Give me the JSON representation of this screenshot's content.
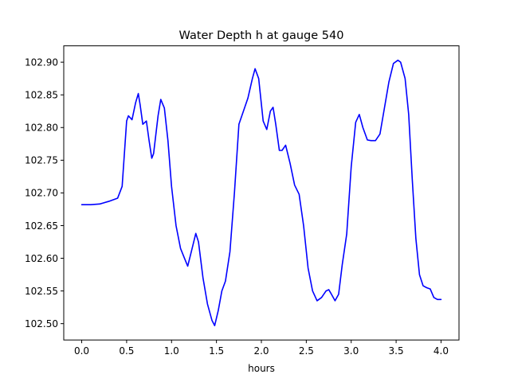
{
  "chart_data": {
    "type": "line",
    "title": "Water Depth h at gauge 540",
    "xlabel": "hours",
    "ylabel": "",
    "xlim": [
      -0.2,
      4.2
    ],
    "ylim": [
      102.475,
      102.925
    ],
    "xticks": [
      0.0,
      0.5,
      1.0,
      1.5,
      2.0,
      2.5,
      3.0,
      3.5,
      4.0
    ],
    "xtick_labels": [
      "0.0",
      "0.5",
      "1.0",
      "1.5",
      "2.0",
      "2.5",
      "3.0",
      "3.5",
      "4.0"
    ],
    "yticks": [
      102.5,
      102.55,
      102.6,
      102.65,
      102.7,
      102.75,
      102.8,
      102.85,
      102.9
    ],
    "ytick_labels": [
      "102.50",
      "102.55",
      "102.60",
      "102.65",
      "102.70",
      "102.75",
      "102.80",
      "102.85",
      "102.90"
    ],
    "grid": false,
    "legend": "none",
    "series": [
      {
        "color": "#0000ff",
        "x": [
          0.0,
          0.1,
          0.2,
          0.3,
          0.4,
          0.45,
          0.48,
          0.5,
          0.52,
          0.56,
          0.6,
          0.63,
          0.65,
          0.68,
          0.72,
          0.75,
          0.78,
          0.8,
          0.85,
          0.88,
          0.92,
          0.96,
          1.0,
          1.05,
          1.1,
          1.15,
          1.18,
          1.22,
          1.27,
          1.3,
          1.35,
          1.4,
          1.45,
          1.48,
          1.52,
          1.56,
          1.6,
          1.65,
          1.7,
          1.75,
          1.8,
          1.85,
          1.9,
          1.93,
          1.97,
          2.02,
          2.06,
          2.1,
          2.13,
          2.16,
          2.2,
          2.23,
          2.27,
          2.32,
          2.37,
          2.42,
          2.47,
          2.52,
          2.57,
          2.62,
          2.67,
          2.72,
          2.75,
          2.78,
          2.82,
          2.86,
          2.9,
          2.95,
          3.0,
          3.05,
          3.09,
          3.13,
          3.18,
          3.22,
          3.27,
          3.32,
          3.37,
          3.42,
          3.47,
          3.52,
          3.55,
          3.6,
          3.64,
          3.68,
          3.72,
          3.76,
          3.8,
          3.84,
          3.88,
          3.92,
          3.96,
          4.0
        ],
        "y": [
          102.682,
          102.682,
          102.683,
          102.687,
          102.692,
          102.71,
          102.77,
          102.81,
          102.818,
          102.812,
          102.838,
          102.852,
          102.835,
          102.805,
          102.81,
          102.78,
          102.753,
          102.76,
          102.818,
          102.843,
          102.83,
          102.78,
          102.71,
          102.65,
          102.615,
          102.598,
          102.588,
          102.61,
          102.638,
          102.625,
          102.57,
          102.53,
          102.505,
          102.497,
          102.52,
          102.55,
          102.565,
          102.61,
          102.7,
          102.805,
          102.825,
          102.845,
          102.875,
          102.89,
          102.875,
          102.81,
          102.797,
          102.825,
          102.831,
          102.805,
          102.765,
          102.765,
          102.773,
          102.745,
          102.712,
          102.698,
          102.65,
          102.585,
          102.55,
          102.535,
          102.54,
          102.55,
          102.552,
          102.545,
          102.535,
          102.545,
          102.59,
          102.637,
          102.74,
          102.808,
          102.82,
          102.8,
          102.781,
          102.78,
          102.78,
          102.79,
          102.83,
          102.87,
          102.898,
          102.903,
          102.9,
          102.875,
          102.82,
          102.72,
          102.63,
          102.575,
          102.558,
          102.555,
          102.553,
          102.54,
          102.537,
          102.537
        ]
      }
    ]
  }
}
